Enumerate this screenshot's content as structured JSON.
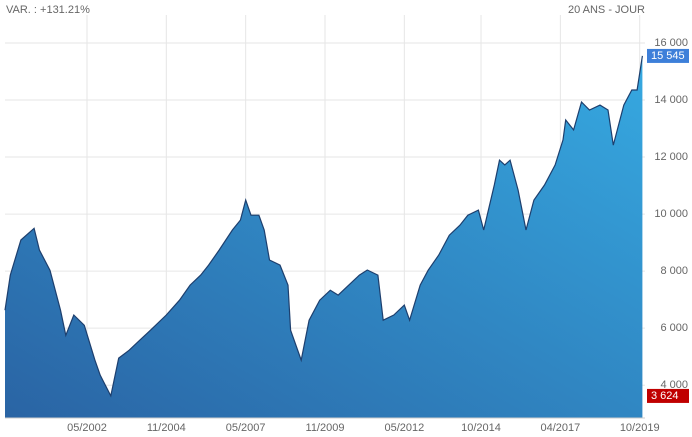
{
  "chart_data": {
    "type": "area",
    "subtitle_left": "VAR. : +131.21%",
    "subtitle_right": "20 ANS - JOUR",
    "color_dark": "#2a64a4",
    "color_light": "#36a9e1",
    "line_color": "#1d3f6e",
    "grid": true,
    "x": [
      "1999-10",
      "1999-12",
      "2000-04",
      "2000-09",
      "2000-11",
      "2001-03",
      "2001-07",
      "2001-09",
      "2001-12",
      "2002-04",
      "2002-08",
      "2002-10",
      "2003-02",
      "2003-05",
      "2003-09",
      "2004-01",
      "2004-05",
      "2004-11",
      "2005-04",
      "2005-08",
      "2005-12",
      "2006-03",
      "2006-07",
      "2006-12",
      "2007-03",
      "2007-05",
      "2007-07",
      "2007-10",
      "2007-12",
      "2008-02",
      "2008-06",
      "2008-09",
      "2008-10",
      "2009-02",
      "2009-05",
      "2009-09",
      "2010-01",
      "2010-04",
      "2010-08",
      "2010-12",
      "2011-03",
      "2011-07",
      "2011-09",
      "2012-01",
      "2012-05",
      "2012-07",
      "2012-11",
      "2013-02",
      "2013-06",
      "2013-10",
      "2014-02",
      "2014-05",
      "2014-09",
      "2014-11",
      "2015-03",
      "2015-05",
      "2015-07",
      "2015-09",
      "2015-12",
      "2016-03",
      "2016-06",
      "2016-10",
      "2017-02",
      "2017-05",
      "2017-06",
      "2017-09",
      "2017-12",
      "2018-03",
      "2018-07",
      "2018-10",
      "2018-12",
      "2019-04",
      "2019-07",
      "2019-09",
      "2019-11"
    ],
    "values": [
      6630,
      7860,
      9090,
      9500,
      8740,
      8030,
      6630,
      5750,
      6460,
      6100,
      4880,
      4350,
      3624,
      4950,
      5230,
      5580,
      5930,
      6460,
      6980,
      7510,
      7860,
      8210,
      8740,
      9440,
      9790,
      10490,
      9960,
      9960,
      9440,
      8390,
      8210,
      7510,
      5930,
      4880,
      6280,
      6980,
      7330,
      7160,
      7510,
      7860,
      8040,
      7860,
      6280,
      6460,
      6810,
      6280,
      7510,
      8030,
      8560,
      9260,
      9610,
      9960,
      10140,
      9440,
      11020,
      11890,
      11720,
      11890,
      10840,
      9440,
      10490,
      11020,
      11720,
      12600,
      13300,
      12950,
      13930,
      13650,
      13820,
      13650,
      12420,
      13820,
      14350,
      14350,
      15545
    ],
    "value_labels": [
      null,
      null,
      null,
      null,
      null,
      null,
      null,
      null,
      null,
      null,
      null,
      null,
      "3 624",
      null,
      null,
      null,
      null,
      null,
      null,
      null,
      null,
      null,
      null,
      null,
      null,
      null,
      null,
      null,
      null,
      null,
      null,
      null,
      null,
      null,
      null,
      null,
      null,
      null,
      null,
      null,
      null,
      null,
      null,
      null,
      null,
      null,
      null,
      null,
      null,
      null,
      null,
      null,
      null,
      null,
      null,
      null,
      null,
      null,
      null,
      null,
      null,
      null,
      null,
      null,
      null,
      null,
      null,
      null,
      null,
      null,
      null,
      null,
      null,
      null,
      "15 545"
    ],
    "label_colors": {
      "last": "#3d7fd9",
      "min": "#c00000"
    },
    "xlim": [
      "1999-10",
      "2019-12"
    ],
    "xticks": [
      {
        "value": "2002-05",
        "label": "05/2002"
      },
      {
        "value": "2004-11",
        "label": "11/2004"
      },
      {
        "value": "2007-05",
        "label": "05/2007"
      },
      {
        "value": "2009-11",
        "label": "11/2009"
      },
      {
        "value": "2012-05",
        "label": "05/2012"
      },
      {
        "value": "2014-10",
        "label": "10/2014"
      },
      {
        "value": "2017-04",
        "label": "04/2017"
      },
      {
        "value": "2019-10",
        "label": "10/2019"
      }
    ],
    "ylim": [
      2850,
      16980
    ],
    "yticks": [
      {
        "value": 4000,
        "label": "4 000"
      },
      {
        "value": 6000,
        "label": "6 000"
      },
      {
        "value": 8000,
        "label": "8 000"
      },
      {
        "value": 10000,
        "label": "10 000"
      },
      {
        "value": 12000,
        "label": "12 000"
      },
      {
        "value": 14000,
        "label": "14 000"
      },
      {
        "value": 16000,
        "label": "16 000"
      }
    ]
  }
}
